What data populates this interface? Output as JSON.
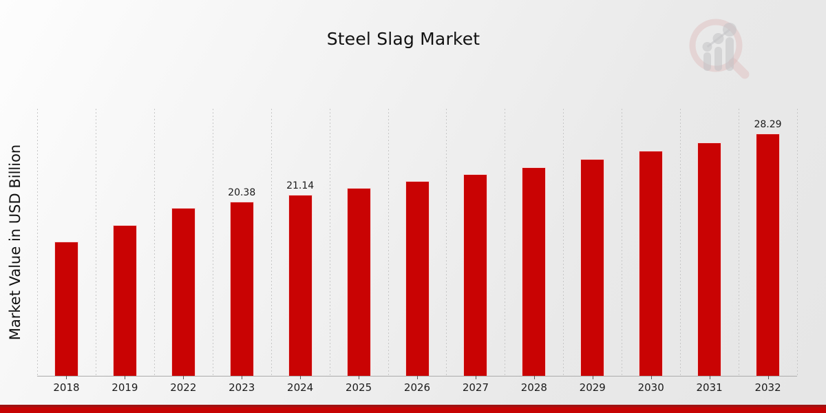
{
  "title": "Steel Slag Market",
  "y_axis_label": "Market Value in USD Billion",
  "watermark": {
    "icon": "magnifier-bar-chart-logo-icon"
  },
  "colors": {
    "bar": "#c90303",
    "accent_band": "#c60303",
    "gridline": "#c6c6c6",
    "axis_line": "#ababab",
    "text": "#1a1a1a"
  },
  "chart_data": {
    "type": "bar",
    "title": "Steel Slag Market",
    "xlabel": "",
    "ylabel": "Market Value in USD Billion",
    "categories": [
      "2018",
      "2019",
      "2022",
      "2023",
      "2024",
      "2025",
      "2026",
      "2027",
      "2028",
      "2029",
      "2030",
      "2031",
      "2032"
    ],
    "values": [
      15.68,
      17.61,
      19.61,
      20.38,
      21.14,
      21.95,
      22.76,
      23.57,
      24.36,
      25.33,
      26.29,
      27.26,
      28.29
    ],
    "data_labels": [
      "",
      "",
      "",
      "20.38",
      "21.14",
      "",
      "",
      "",
      "",
      "",
      "",
      "",
      "28.29"
    ],
    "ylim": [
      0,
      31.2
    ],
    "grid": "vertical dashed lines at category boundaries",
    "legend": "none",
    "bar_color": "#c90303",
    "note": "y-axis has no tick labels; only 2023, 2024 and 2032 bars carry data labels"
  }
}
